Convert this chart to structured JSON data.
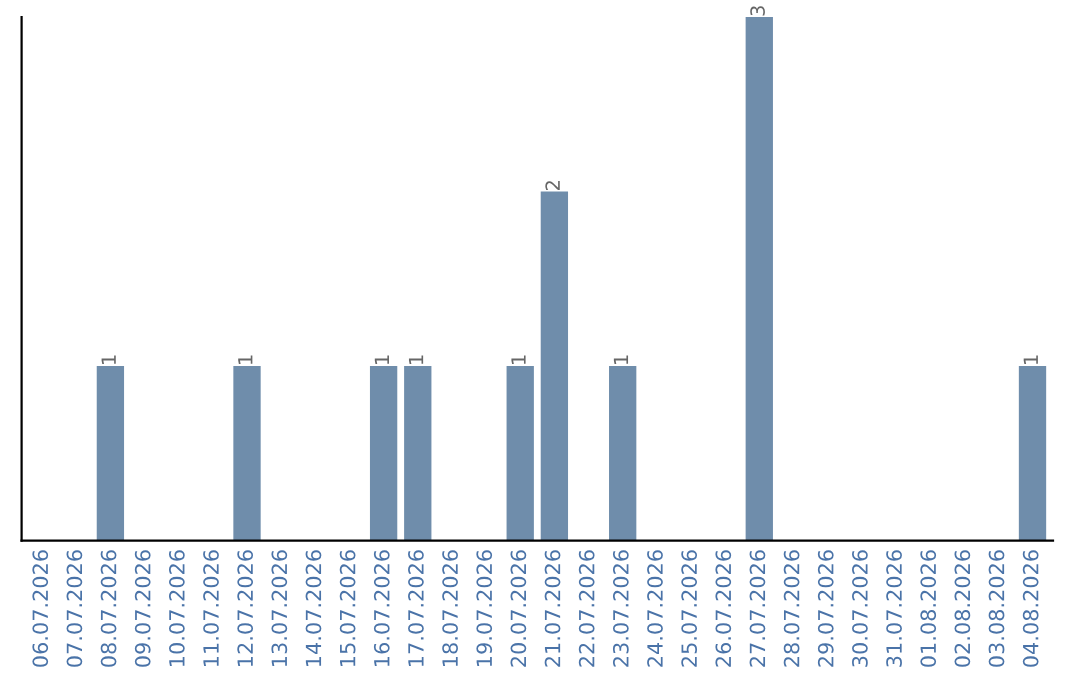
{
  "chart_data": {
    "type": "bar",
    "categories": [
      "06.07.2026",
      "07.07.2026",
      "08.07.2026",
      "09.07.2026",
      "10.07.2026",
      "11.07.2026",
      "12.07.2026",
      "13.07.2026",
      "14.07.2026",
      "15.07.2026",
      "16.07.2026",
      "17.07.2026",
      "18.07.2026",
      "19.07.2026",
      "20.07.2026",
      "21.07.2026",
      "22.07.2026",
      "23.07.2026",
      "24.07.2026",
      "25.07.2026",
      "26.07.2026",
      "27.07.2026",
      "28.07.2026",
      "29.07.2026",
      "30.07.2026",
      "31.07.2026",
      "01.08.2026",
      "02.08.2026",
      "03.08.2026",
      "04.08.2026"
    ],
    "values": [
      0,
      0,
      1,
      0,
      0,
      0,
      1,
      0,
      0,
      0,
      1,
      1,
      0,
      0,
      1,
      2,
      0,
      1,
      0,
      0,
      0,
      3,
      0,
      0,
      0,
      0,
      0,
      0,
      0,
      1
    ],
    "value_labels": [
      null,
      null,
      "1",
      null,
      null,
      null,
      "1",
      null,
      null,
      null,
      "1",
      "1",
      null,
      null,
      "1",
      "2",
      null,
      "1",
      null,
      null,
      null,
      "3",
      null,
      null,
      null,
      null,
      null,
      null,
      null,
      "1"
    ],
    "color": "#6f8dab",
    "tick_labels": "x",
    "grid": false,
    "legend": false
  }
}
